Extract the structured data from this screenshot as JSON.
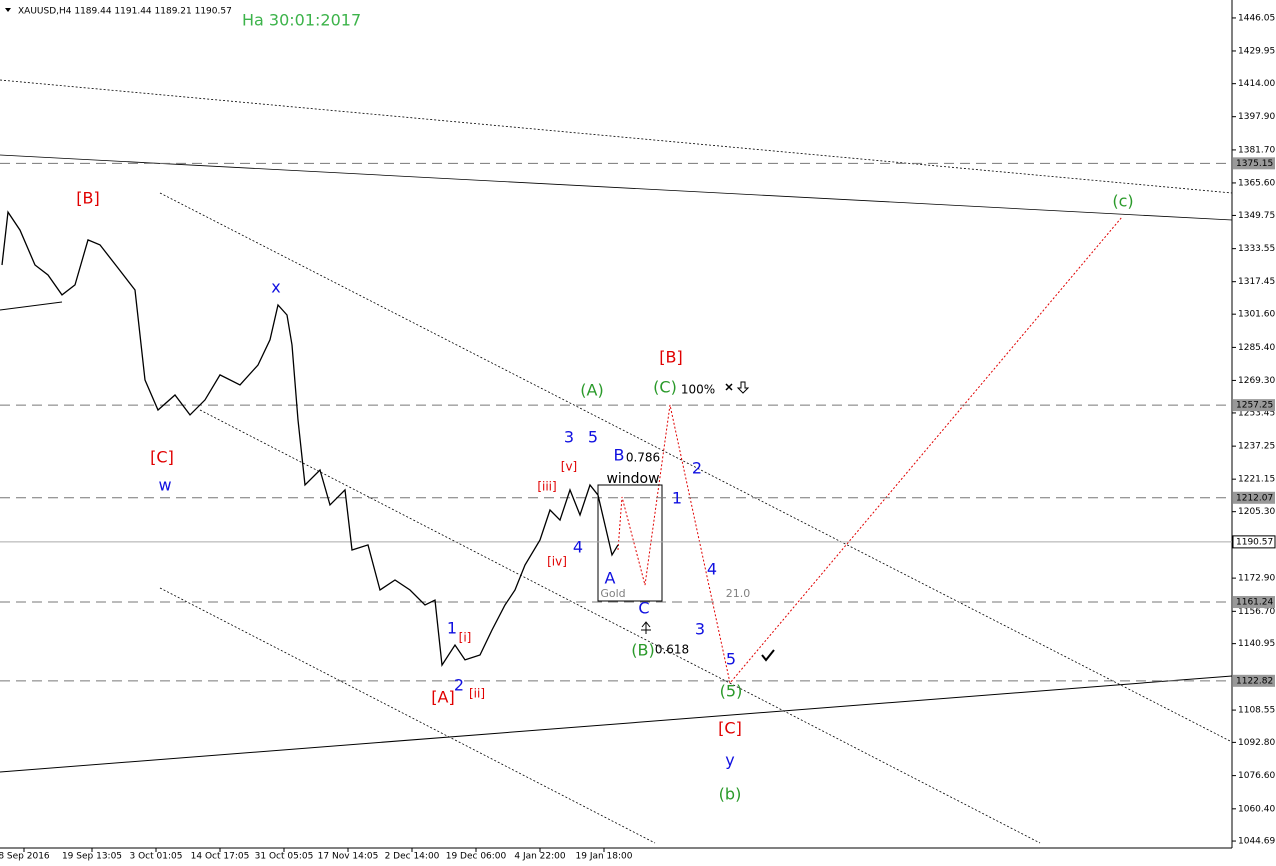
{
  "chart_data": {
    "type": "line",
    "title": "XAUUSD,H4  1189.44 1191.44 1189.21 1190.57",
    "subtitle": "Ha 30:01:2017",
    "subtitle_color": "#3cb34a",
    "color": "#000000",
    "x": [
      0.5,
      2,
      5,
      8.75,
      12,
      15.5,
      18.75,
      22,
      25,
      29.5,
      33.75,
      36.25,
      39.5,
      43.75,
      47.5,
      51.25,
      55,
      60,
      64.5,
      67.5,
      69.5,
      71.75,
      73,
      74.5,
      76.25,
      80,
      82.5,
      86.25,
      88,
      92,
      95,
      98.75,
      102.5,
      106.25,
      108.75,
      110.5,
      113.75,
      116.25,
      120,
      123,
      126.25,
      128.75,
      131.25,
      135,
      137.5,
      140,
      142.5,
      145,
      147.5,
      149.5,
      151.25,
      153,
      154.5
    ],
    "values": [
      1325.6,
      1351.4,
      1342.6,
      1325.6,
      1320.7,
      1311.0,
      1315.9,
      1337.8,
      1335.4,
      1324.1,
      1313.4,
      1269.5,
      1254.9,
      1262.2,
      1252.5,
      1259.8,
      1272.0,
      1267.1,
      1276.8,
      1289.1,
      1306.1,
      1301.2,
      1286.6,
      1250.0,
      1218.3,
      1225.6,
      1208.6,
      1215.9,
      1186.6,
      1189.1,
      1167.1,
      1172.0,
      1167.1,
      1159.8,
      1162.2,
      1130.5,
      1140.3,
      1133.0,
      1135.4,
      1147.6,
      1159.8,
      1167.1,
      1179.3,
      1191.5,
      1206.1,
      1201.2,
      1215.9,
      1203.7,
      1218.3,
      1213.4,
      1198.8,
      1184.2,
      1189.1
    ],
    "xlim": [
      0,
      308
    ],
    "xticks": [
      {
        "value": 6,
        "label": "8 Sep 2016"
      },
      {
        "value": 23,
        "label": "19 Sep 13:05"
      },
      {
        "value": 39,
        "label": "3 Oct 01:05"
      },
      {
        "value": 55,
        "label": "14 Oct 17:05"
      },
      {
        "value": 71,
        "label": "31 Oct 05:05"
      },
      {
        "value": 87,
        "label": "17 Nov 14:05"
      },
      {
        "value": 103,
        "label": "2 Dec 14:00"
      },
      {
        "value": 119,
        "label": "19 Dec 06:00"
      },
      {
        "value": 135,
        "label": "4 Jan 22:00"
      },
      {
        "value": 151,
        "label": "19 Jan 18:00"
      }
    ],
    "ylim": [
      1041.3,
      1454.8
    ],
    "yticks": [
      {
        "value": 1446.05,
        "label": "1446.05"
      },
      1429.95,
      {
        "value": 1414.0,
        "label": "1414.00"
      },
      {
        "value": 1397.9,
        "label": "1397.90"
      },
      {
        "value": 1381.7,
        "label": "1381.70"
      },
      {
        "value": 1365.6,
        "label": "1365.60"
      },
      1349.75,
      1333.55,
      1317.45,
      {
        "value": 1301.6,
        "label": "1301.60"
      },
      {
        "value": 1285.4,
        "label": "1285.40"
      },
      {
        "value": 1269.3,
        "label": "1269.30"
      },
      1253.45,
      1237.25,
      1221.15,
      {
        "value": 1205.3,
        "label": "1205.30"
      },
      {
        "value": 1172.9,
        "label": "1172.90"
      },
      {
        "value": 1156.7,
        "label": "1156.70"
      },
      1140.95,
      1108.55,
      {
        "value": 1092.8,
        "label": "1092.80"
      },
      {
        "value": 1076.6,
        "label": "1076.60"
      },
      {
        "value": 1060.4,
        "label": "1060.40"
      },
      1044.69
    ],
    "levels": [
      1375.15,
      1257.25,
      1212.07,
      1190.57,
      1161.24,
      1122.82
    ],
    "annotations": [
      {
        "text": "[B]",
        "color": "#e00000"
      },
      {
        "text": "[C]",
        "color": "#e00000"
      },
      {
        "text": "w",
        "color": "#1010e0"
      },
      {
        "text": "x",
        "color": "#1010e0"
      },
      {
        "text": "[A]",
        "color": "#e00000"
      },
      {
        "text": "[i]",
        "color": "#e00000"
      },
      {
        "text": "[ii]",
        "color": "#e00000"
      },
      {
        "text": "1",
        "color": "#1010e0"
      },
      {
        "text": "2",
        "color": "#1010e0"
      },
      {
        "text": "[iii]",
        "color": "#e00000"
      },
      {
        "text": "[iv]",
        "color": "#e00000"
      },
      {
        "text": "[v]",
        "color": "#e00000"
      },
      {
        "text": "3",
        "color": "#1010e0"
      },
      {
        "text": "5",
        "color": "#1010e0"
      },
      {
        "text": "4",
        "color": "#1010e0"
      },
      {
        "text": "(A)",
        "color": "#2a9a2a"
      },
      {
        "text": "B",
        "color": "#1010e0"
      },
      {
        "text": "0.786",
        "color": "#000000"
      },
      {
        "text": "window",
        "color": "#000000"
      },
      {
        "text": "A",
        "color": "#1010e0"
      },
      {
        "text": "Gold",
        "color": "#808080"
      },
      {
        "text": "C",
        "color": "#1010e0"
      },
      {
        "text": "(B)",
        "color": "#2a9a2a"
      },
      {
        "text": "0.618",
        "color": "#000000"
      },
      {
        "text": "[B]",
        "color": "#e00000"
      },
      {
        "text": "(C)",
        "color": "#2a9a2a"
      },
      {
        "text": "100%",
        "color": "#000000"
      },
      {
        "text": "1",
        "color": "#1010e0"
      },
      {
        "text": "2",
        "color": "#1010e0"
      },
      {
        "text": "4",
        "color": "#1010e0"
      },
      {
        "text": "21.0",
        "color": "#808080"
      },
      {
        "text": "3",
        "color": "#1010e0"
      },
      {
        "text": "5",
        "color": "#1010e0"
      },
      {
        "text": "(5)",
        "color": "#2a9a2a"
      },
      {
        "text": "[C]",
        "color": "#e00000"
      },
      {
        "text": "y",
        "color": "#1010e0"
      },
      {
        "text": "(b)",
        "color": "#2a9a2a"
      },
      {
        "text": "(c)",
        "color": "#2a9a2a"
      }
    ]
  }
}
